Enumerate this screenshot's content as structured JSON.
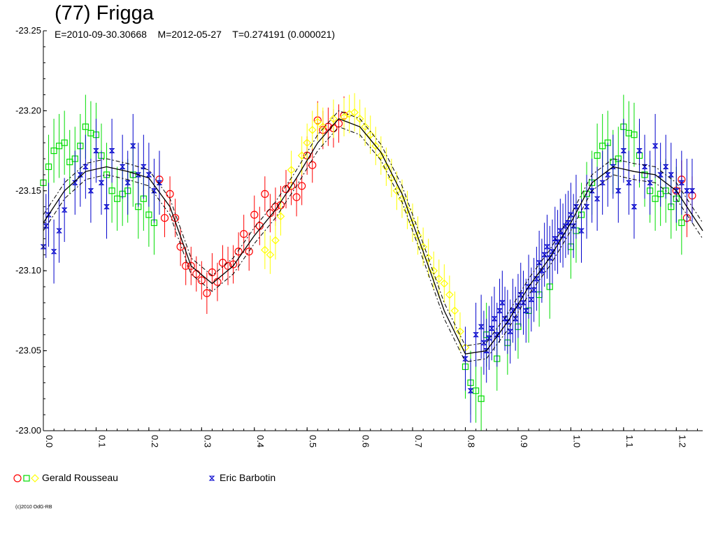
{
  "header": {
    "title": "(77) Frigga",
    "subtitle": "E=2010-09-30.30668    M=2012-05-27    T=0.274191 (0.000021)"
  },
  "legend": {
    "observer1": "Gerald Rousseau",
    "observer2": "Eric Barbotin"
  },
  "footer": {
    "credit": "(c)2010 OdG-RB"
  },
  "colors": {
    "red": "#ff0000",
    "green": "#00dd00",
    "yellow": "#ffff00",
    "blue": "#0000cc",
    "axis": "#000000"
  },
  "chart_data": {
    "type": "scatter",
    "title": "(77) Frigga",
    "xlabel": "",
    "ylabel": "",
    "xlim": [
      0.0,
      1.25
    ],
    "ylim": [
      -23.25,
      -23.0
    ],
    "y_inverted": true,
    "grid": false,
    "legend_position": "bottom-left",
    "x_ticks": [
      "0.0",
      "0.1",
      "0.2",
      "0.3",
      "0.4",
      "0.5",
      "0.6",
      "0.7",
      "0.8",
      "0.9",
      "1.0",
      "1.1",
      "1.2"
    ],
    "y_ticks": [
      "-23.25",
      "-23.20",
      "-23.15",
      "-23.10",
      "-23.05",
      "-23.00"
    ],
    "model_curve": {
      "x": [
        0.0,
        0.04,
        0.08,
        0.12,
        0.16,
        0.2,
        0.24,
        0.28,
        0.32,
        0.36,
        0.4,
        0.44,
        0.48,
        0.52,
        0.56,
        0.6,
        0.64,
        0.68,
        0.72,
        0.76,
        0.8,
        0.84,
        0.88,
        0.92,
        0.96,
        1.0,
        1.04,
        1.08,
        1.12,
        1.16,
        1.2,
        1.25
      ],
      "y": [
        -23.13,
        -23.15,
        -23.162,
        -23.165,
        -23.162,
        -23.158,
        -23.14,
        -23.103,
        -23.092,
        -23.103,
        -23.122,
        -23.138,
        -23.158,
        -23.18,
        -23.195,
        -23.19,
        -23.174,
        -23.148,
        -23.112,
        -23.075,
        -23.048,
        -23.05,
        -23.068,
        -23.09,
        -23.108,
        -23.13,
        -23.155,
        -23.165,
        -23.162,
        -23.16,
        -23.15,
        -23.125
      ],
      "band": 0.005
    },
    "series": [
      {
        "name": "Gerald Rousseau",
        "color": "#ff0000",
        "marker": "circle",
        "x": [
          0.22,
          0.23,
          0.24,
          0.25,
          0.26,
          0.27,
          0.28,
          0.29,
          0.3,
          0.31,
          0.32,
          0.33,
          0.34,
          0.35,
          0.36,
          0.37,
          0.38,
          0.39,
          0.4,
          0.41,
          0.42,
          0.43,
          0.44,
          0.45,
          0.46,
          0.47,
          0.48,
          0.49,
          0.5,
          0.51,
          0.52,
          0.53,
          0.54,
          0.55,
          0.56,
          0.57,
          1.2,
          1.21,
          1.22,
          1.23
        ],
        "y": [
          -23.157,
          -23.133,
          -23.148,
          -23.133,
          -23.115,
          -23.103,
          -23.103,
          -23.098,
          -23.094,
          -23.086,
          -23.099,
          -23.093,
          -23.105,
          -23.103,
          -23.104,
          -23.112,
          -23.123,
          -23.112,
          -23.135,
          -23.128,
          -23.148,
          -23.136,
          -23.14,
          -23.141,
          -23.151,
          -23.153,
          -23.146,
          -23.153,
          -23.172,
          -23.166,
          -23.194,
          -23.188,
          -23.19,
          -23.189,
          -23.192,
          -23.197,
          -23.15,
          -23.157,
          -23.133,
          -23.147
        ],
        "error": [
          0.012,
          0.012,
          0.011,
          0.012,
          0.012,
          0.012,
          0.012,
          0.011,
          0.012,
          0.013,
          0.012,
          0.012,
          0.011,
          0.012,
          0.012,
          0.012,
          0.012,
          0.012,
          0.012,
          0.012,
          0.011,
          0.012,
          0.012,
          0.012,
          0.012,
          0.012,
          0.012,
          0.012,
          0.012,
          0.011,
          0.012,
          0.012,
          0.012,
          0.012,
          0.012,
          0.012,
          0.012,
          0.012,
          0.012,
          0.012
        ]
      },
      {
        "name": "Gerald Rousseau",
        "color": "#00dd00",
        "marker": "square",
        "x": [
          0.0,
          0.01,
          0.02,
          0.03,
          0.04,
          0.05,
          0.06,
          0.07,
          0.08,
          0.09,
          0.1,
          0.11,
          0.12,
          0.13,
          0.14,
          0.15,
          0.16,
          0.17,
          0.18,
          0.19,
          0.2,
          0.21,
          0.8,
          0.81,
          0.82,
          0.83,
          0.84,
          0.86,
          0.88,
          0.9,
          0.92,
          0.94,
          0.96,
          1.0,
          1.01,
          1.02,
          1.03,
          1.04,
          1.05,
          1.06,
          1.07,
          1.08,
          1.09,
          1.1,
          1.11,
          1.12,
          1.13,
          1.14,
          1.15,
          1.16,
          1.17,
          1.18,
          1.19,
          1.2,
          1.21
        ],
        "y": [
          -23.155,
          -23.165,
          -23.175,
          -23.178,
          -23.18,
          -23.168,
          -23.17,
          -23.178,
          -23.19,
          -23.186,
          -23.185,
          -23.172,
          -23.16,
          -23.15,
          -23.145,
          -23.148,
          -23.15,
          -23.16,
          -23.14,
          -23.145,
          -23.135,
          -23.13,
          -23.04,
          -23.03,
          -23.025,
          -23.02,
          -23.06,
          -23.045,
          -23.055,
          -23.065,
          -23.075,
          -23.085,
          -23.09,
          -23.115,
          -23.125,
          -23.135,
          -23.148,
          -23.155,
          -23.172,
          -23.178,
          -23.18,
          -23.168,
          -23.17,
          -23.19,
          -23.186,
          -23.185,
          -23.172,
          -23.16,
          -23.15,
          -23.145,
          -23.148,
          -23.15,
          -23.14,
          -23.145,
          -23.13
        ],
        "error": [
          0.02,
          0.02,
          0.02,
          0.02,
          0.02,
          0.02,
          0.02,
          0.02,
          0.02,
          0.02,
          0.02,
          0.02,
          0.02,
          0.02,
          0.02,
          0.02,
          0.02,
          0.02,
          0.02,
          0.02,
          0.02,
          0.02,
          0.02,
          0.02,
          0.02,
          0.02,
          0.02,
          0.02,
          0.02,
          0.02,
          0.02,
          0.02,
          0.02,
          0.02,
          0.02,
          0.02,
          0.02,
          0.02,
          0.02,
          0.02,
          0.02,
          0.02,
          0.02,
          0.02,
          0.02,
          0.02,
          0.02,
          0.02,
          0.02,
          0.02,
          0.02,
          0.02,
          0.02,
          0.02,
          0.02
        ]
      },
      {
        "name": "Gerald Rousseau",
        "color": "#ffff00",
        "marker": "diamond",
        "x": [
          0.42,
          0.43,
          0.44,
          0.45,
          0.47,
          0.49,
          0.5,
          0.51,
          0.52,
          0.53,
          0.55,
          0.57,
          0.58,
          0.59,
          0.6,
          0.61,
          0.62,
          0.63,
          0.64,
          0.65,
          0.66,
          0.67,
          0.68,
          0.69,
          0.7,
          0.71,
          0.72,
          0.73,
          0.74,
          0.75,
          0.76,
          0.77,
          0.78,
          0.79,
          0.8
        ],
        "y": [
          -23.113,
          -23.11,
          -23.119,
          -23.134,
          -23.163,
          -23.172,
          -23.18,
          -23.188,
          -23.193,
          -23.19,
          -23.195,
          -23.196,
          -23.198,
          -23.199,
          -23.195,
          -23.19,
          -23.185,
          -23.178,
          -23.172,
          -23.165,
          -23.158,
          -23.15,
          -23.145,
          -23.138,
          -23.13,
          -23.122,
          -23.115,
          -23.108,
          -23.1,
          -23.095,
          -23.092,
          -23.085,
          -23.075,
          -23.062,
          -23.052
        ],
        "error": [
          0.012,
          0.012,
          0.012,
          0.012,
          0.012,
          0.012,
          0.012,
          0.012,
          0.012,
          0.012,
          0.012,
          0.012,
          0.012,
          0.012,
          0.012,
          0.012,
          0.012,
          0.012,
          0.012,
          0.012,
          0.012,
          0.012,
          0.012,
          0.012,
          0.012,
          0.012,
          0.012,
          0.012,
          0.012,
          0.012,
          0.012,
          0.012,
          0.012,
          0.012,
          0.012
        ]
      },
      {
        "name": "Eric Barbotin",
        "color": "#0000cc",
        "marker": "star",
        "x": [
          0.0,
          0.005,
          0.01,
          0.02,
          0.03,
          0.04,
          0.06,
          0.07,
          0.08,
          0.09,
          0.1,
          0.11,
          0.12,
          0.13,
          0.15,
          0.16,
          0.17,
          0.18,
          0.19,
          0.2,
          0.21,
          0.22,
          0.8,
          0.81,
          0.82,
          0.83,
          0.835,
          0.84,
          0.845,
          0.85,
          0.855,
          0.86,
          0.865,
          0.87,
          0.875,
          0.88,
          0.885,
          0.89,
          0.895,
          0.9,
          0.905,
          0.91,
          0.915,
          0.92,
          0.925,
          0.93,
          0.935,
          0.94,
          0.945,
          0.95,
          0.955,
          0.96,
          0.965,
          0.97,
          0.975,
          0.98,
          0.985,
          0.99,
          0.995,
          1.0,
          1.005,
          1.01,
          1.02,
          1.03,
          1.04,
          1.05,
          1.06,
          1.07,
          1.08,
          1.09,
          1.1,
          1.11,
          1.12,
          1.13,
          1.14,
          1.15,
          1.16,
          1.17,
          1.18,
          1.19,
          1.2,
          1.21,
          1.22,
          1.23
        ],
        "y": [
          -23.115,
          -23.128,
          -23.135,
          -23.112,
          -23.125,
          -23.138,
          -23.155,
          -23.16,
          -23.165,
          -23.15,
          -23.175,
          -23.155,
          -23.14,
          -23.175,
          -23.165,
          -23.155,
          -23.178,
          -23.16,
          -23.165,
          -23.16,
          -23.15,
          -23.155,
          -23.045,
          -23.025,
          -23.06,
          -23.065,
          -23.055,
          -23.05,
          -23.058,
          -23.064,
          -23.07,
          -23.06,
          -23.075,
          -23.08,
          -23.07,
          -23.068,
          -23.062,
          -23.075,
          -23.07,
          -23.078,
          -23.085,
          -23.08,
          -23.075,
          -23.09,
          -23.082,
          -23.088,
          -23.095,
          -23.105,
          -23.1,
          -23.11,
          -23.115,
          -23.108,
          -23.112,
          -23.12,
          -23.118,
          -23.125,
          -23.122,
          -23.128,
          -23.13,
          -23.135,
          -23.128,
          -23.14,
          -23.125,
          -23.14,
          -23.15,
          -23.145,
          -23.155,
          -23.16,
          -23.165,
          -23.15,
          -23.175,
          -23.155,
          -23.14,
          -23.175,
          -23.165,
          -23.155,
          -23.178,
          -23.16,
          -23.165,
          -23.16,
          -23.15,
          -23.155,
          -23.15,
          -23.15
        ],
        "error": [
          0.02,
          0.02,
          0.02,
          0.02,
          0.02,
          0.02,
          0.02,
          0.02,
          0.02,
          0.02,
          0.02,
          0.02,
          0.02,
          0.02,
          0.02,
          0.02,
          0.02,
          0.02,
          0.02,
          0.02,
          0.02,
          0.02,
          0.02,
          0.02,
          0.02,
          0.02,
          0.02,
          0.02,
          0.02,
          0.02,
          0.02,
          0.02,
          0.02,
          0.02,
          0.02,
          0.02,
          0.02,
          0.02,
          0.02,
          0.02,
          0.02,
          0.02,
          0.02,
          0.02,
          0.02,
          0.02,
          0.02,
          0.02,
          0.02,
          0.02,
          0.02,
          0.02,
          0.02,
          0.02,
          0.02,
          0.02,
          0.02,
          0.02,
          0.02,
          0.02,
          0.02,
          0.02,
          0.02,
          0.02,
          0.02,
          0.02,
          0.02,
          0.02,
          0.02,
          0.02,
          0.02,
          0.02,
          0.02,
          0.02,
          0.02,
          0.02,
          0.02,
          0.02,
          0.02,
          0.02,
          0.02,
          0.02,
          0.02,
          0.02
        ]
      }
    ]
  }
}
